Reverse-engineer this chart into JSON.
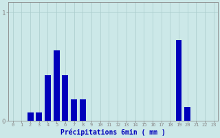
{
  "title": "",
  "xlabel": "Précipitations 6min ( mm )",
  "ylabel": "",
  "background_color": "#cce8e8",
  "bar_color": "#0000bb",
  "grid_color": "#aacccc",
  "axis_color": "#888888",
  "text_color": "#0000bb",
  "ylim": [
    0,
    1.1
  ],
  "xlim": [
    -0.5,
    23.5
  ],
  "yticks": [
    0,
    1
  ],
  "categories": [
    0,
    1,
    2,
    3,
    4,
    5,
    6,
    7,
    8,
    9,
    10,
    11,
    12,
    13,
    14,
    15,
    16,
    17,
    18,
    19,
    20,
    21,
    22,
    23
  ],
  "values": [
    0,
    0,
    0.08,
    0.08,
    0.42,
    0.65,
    0.42,
    0.2,
    0.2,
    0,
    0,
    0,
    0,
    0,
    0,
    0,
    0,
    0,
    0,
    0.75,
    0.13,
    0,
    0,
    0
  ],
  "figsize": [
    3.2,
    2.0
  ],
  "dpi": 100,
  "bar_width": 0.7,
  "tick_fontsize": 5,
  "xlabel_fontsize": 7,
  "ytick_fontsize": 6.5
}
